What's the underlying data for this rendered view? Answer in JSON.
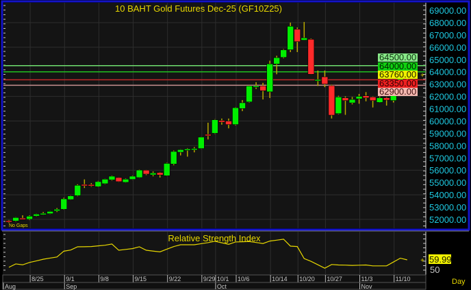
{
  "colors": {
    "up": "#00ee00",
    "down": "#ff2a2a",
    "wick": "#b8a800",
    "text_axis": "#1ec8e0",
    "title": "#e8d800",
    "frame": "#1414c8",
    "plot_bg": "#141414",
    "grid": "#2e2e2e"
  },
  "chart_data": [
    {
      "type": "candlestick",
      "title": "10 BAHT Gold Futures Dec-25 (GF10Z25)",
      "note": "No Gaps",
      "ylim": [
        51700,
        69300
      ],
      "y_ticks": [
        "69000.00",
        "68000.00",
        "67000.00",
        "66000.00",
        "65000.00",
        "64000.00",
        "63000.00",
        "62000.00",
        "61000.00",
        "60000.00",
        "59000.00",
        "58000.00",
        "57000.00",
        "56000.00",
        "55000.00",
        "54000.00",
        "53000.00",
        "52000.00"
      ],
      "grid": true,
      "candles": [
        [
          51890,
          51950,
          51700,
          51780
        ],
        [
          51870,
          52180,
          51820,
          52150
        ],
        [
          52100,
          52330,
          52000,
          52050
        ],
        [
          52010,
          52320,
          51950,
          52260
        ],
        [
          52270,
          52460,
          52230,
          52430
        ],
        [
          52430,
          52600,
          52350,
          52490
        ],
        [
          52460,
          52680,
          52430,
          52650
        ],
        [
          52690,
          52920,
          52600,
          52820
        ],
        [
          52820,
          53760,
          52780,
          53670
        ],
        [
          53610,
          53950,
          53580,
          53910
        ],
        [
          53930,
          54850,
          53880,
          54770
        ],
        [
          54840,
          55250,
          54550,
          54750
        ],
        [
          54830,
          54950,
          54650,
          54760
        ],
        [
          54660,
          55130,
          54620,
          55070
        ],
        [
          54900,
          55300,
          54860,
          55270
        ],
        [
          55210,
          55560,
          55150,
          55510
        ],
        [
          55400,
          55420,
          55040,
          55070
        ],
        [
          55010,
          55320,
          54980,
          55270
        ],
        [
          55250,
          55560,
          55220,
          55510
        ],
        [
          55400,
          56050,
          55370,
          56010
        ],
        [
          56000,
          56020,
          55600,
          55680
        ],
        [
          55620,
          55900,
          55500,
          55770
        ],
        [
          55810,
          55850,
          55400,
          55610
        ],
        [
          55550,
          56600,
          55520,
          56550
        ],
        [
          56500,
          57600,
          56400,
          57520
        ],
        [
          57460,
          57700,
          57200,
          57670
        ],
        [
          57630,
          57780,
          57100,
          57720
        ],
        [
          57670,
          57880,
          57450,
          57760
        ],
        [
          57760,
          58720,
          57730,
          58690
        ],
        [
          58910,
          59860,
          58500,
          58840
        ],
        [
          59000,
          60150,
          58950,
          60100
        ],
        [
          60040,
          60200,
          59700,
          59910
        ],
        [
          59990,
          60200,
          59400,
          59710
        ],
        [
          59710,
          61120,
          59650,
          61080
        ],
        [
          61010,
          61700,
          60800,
          61480
        ],
        [
          61550,
          62900,
          61500,
          62850
        ],
        [
          62750,
          63150,
          62600,
          62850
        ],
        [
          62850,
          63100,
          61750,
          62460
        ],
        [
          62370,
          64900,
          61870,
          64640
        ],
        [
          64630,
          65300,
          63800,
          65150
        ],
        [
          65170,
          65850,
          65100,
          65780
        ],
        [
          65790,
          68000,
          65600,
          67700
        ],
        [
          67460,
          67600,
          65600,
          66450
        ],
        [
          66570,
          68050,
          66550,
          66760
        ],
        [
          66640,
          66700,
          63780,
          63800
        ],
        [
          63370,
          64100,
          62850,
          63370
        ],
        [
          63590,
          64100,
          62750,
          63000
        ],
        [
          62870,
          62950,
          60200,
          60470
        ],
        [
          60600,
          62050,
          60550,
          61950
        ],
        [
          61880,
          62000,
          60500,
          61660
        ],
        [
          61470,
          61950,
          61350,
          61750
        ],
        [
          61800,
          62200,
          61400,
          62000
        ],
        [
          62050,
          62350,
          61600,
          61880
        ],
        [
          61950,
          62000,
          61100,
          61660
        ],
        [
          61510,
          62000,
          61480,
          61880
        ],
        [
          61880,
          61950,
          61250,
          61700
        ],
        [
          61660,
          63000,
          61500,
          62960
        ],
        [
          62870,
          64150,
          62800,
          64040
        ],
        [
          63930,
          64150,
          63300,
          63700
        ]
      ],
      "levels": [
        {
          "value": 64500,
          "label": "64500.00",
          "line": "#70e070",
          "bg": "#88e888",
          "fg": "#103010"
        },
        {
          "value": 64000,
          "label": "64000.00",
          "line": "#20c020",
          "bg": "#10d010",
          "fg": "#002000"
        },
        {
          "value": 63760,
          "label": "63760.00",
          "line": null,
          "bg": "#f0f000",
          "fg": "#202000"
        },
        {
          "value": 63350,
          "label": "63350.00",
          "line": "#c02828",
          "bg": "#ee2020",
          "fg": "#300000"
        },
        {
          "value": 62900,
          "label": "62900.00",
          "line": "#c89090",
          "bg": "#f4b8b0",
          "fg": "#401010"
        }
      ]
    },
    {
      "type": "line",
      "title": "Relative Strength Index",
      "y_ticks": [
        "50"
      ],
      "last_label": "59.99",
      "values": [
        50.1,
        54.6,
        53.4,
        56.5,
        58.6,
        60.8,
        62.3,
        63.8,
        71.5,
        73.0,
        77.3,
        77.4,
        77.6,
        78.5,
        79.4,
        81.0,
        72.7,
        73.8,
        74.9,
        77.3,
        72.7,
        71.6,
        70.6,
        74.1,
        77.6,
        80.0,
        80.0,
        80.0,
        81.4,
        82.8,
        84.6,
        82.6,
        80.6,
        83.7,
        84.0,
        84.3,
        83.0,
        81.6,
        84.9,
        86.1,
        87.4,
        78.2,
        77.6,
        61.7,
        58.0,
        53.5,
        48.9,
        53.8,
        53.2,
        53.0,
        52.6,
        52.9,
        53.2,
        52.0,
        52.0,
        52.0,
        57.1,
        62.2,
        59.99
      ]
    }
  ],
  "x_axis": {
    "day_ticks": [
      {
        "label": "8/25",
        "candle": 3
      },
      {
        "label": "9/1",
        "candle": 8
      },
      {
        "label": "9/8",
        "candle": 13
      },
      {
        "label": "9/15",
        "candle": 18
      },
      {
        "label": "9/22",
        "candle": 23
      },
      {
        "label": "9/29",
        "candle": 28
      },
      {
        "label": "10/1",
        "candle": 30
      },
      {
        "label": "10/6",
        "candle": 33
      },
      {
        "label": "10/14",
        "candle": 38
      },
      {
        "label": "10/20",
        "candle": 42
      },
      {
        "label": "10/27",
        "candle": 46
      },
      {
        "label": "11/3",
        "candle": 51
      },
      {
        "label": "11/10",
        "candle": 56
      }
    ],
    "month_ticks": [
      {
        "label": "Aug",
        "candle": 0
      },
      {
        "label": "Sep",
        "candle": 8
      },
      {
        "label": "Oct",
        "candle": 30
      },
      {
        "label": "Nov",
        "candle": 51
      }
    ],
    "period": "Day"
  }
}
